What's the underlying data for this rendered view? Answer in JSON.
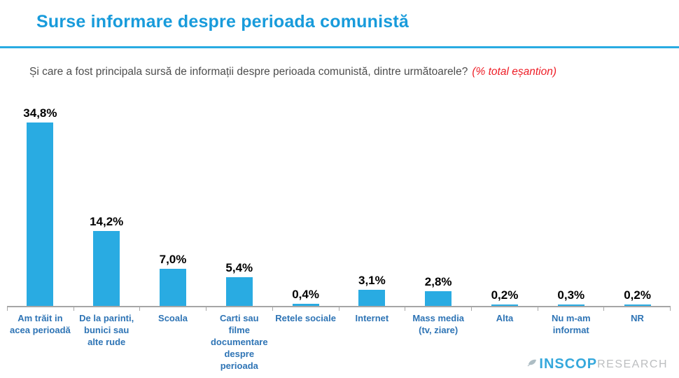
{
  "header": {
    "title": "Surse informare despre perioada comunistă"
  },
  "subtitle": {
    "question": "Și care a fost principala sursă de informații despre perioada comunistă, dintre următoarele?",
    "note": "(% total eșantion)"
  },
  "chart_data": {
    "type": "bar",
    "title": "Surse informare despre perioada comunistă",
    "categories": [
      "Am trăit in acea perioadă",
      "De la parinti, bunici sau alte rude",
      "Scoala",
      "Carti sau filme documentare despre perioada",
      "Retele sociale",
      "Internet",
      "Mass media (tv, ziare)",
      "Alta",
      "Nu m-am informat",
      "NR"
    ],
    "values": [
      34.8,
      14.2,
      7.0,
      5.4,
      0.4,
      3.1,
      2.8,
      0.2,
      0.3,
      0.2
    ],
    "value_labels": [
      "34,8%",
      "14,2%",
      "7,0%",
      "5,4%",
      "0,4%",
      "3,1%",
      "2,8%",
      "0,2%",
      "0,3%",
      "0,2%"
    ],
    "xlabel": "",
    "ylabel": "",
    "ylim": [
      0,
      35
    ],
    "grid": false,
    "legend": "none",
    "bar_color": "#29ABE2"
  },
  "footer": {
    "logo_primary": "INSCOP",
    "logo_secondary": "RESEARCH"
  },
  "colors": {
    "title": "#189BDB",
    "divider": "#29ABE2",
    "bar": "#29ABE2",
    "category_label": "#2E74B5",
    "subtitle_text": "#4D4D4D",
    "note_red": "#EE1C25",
    "axis_gray": "#A6A6A6"
  }
}
